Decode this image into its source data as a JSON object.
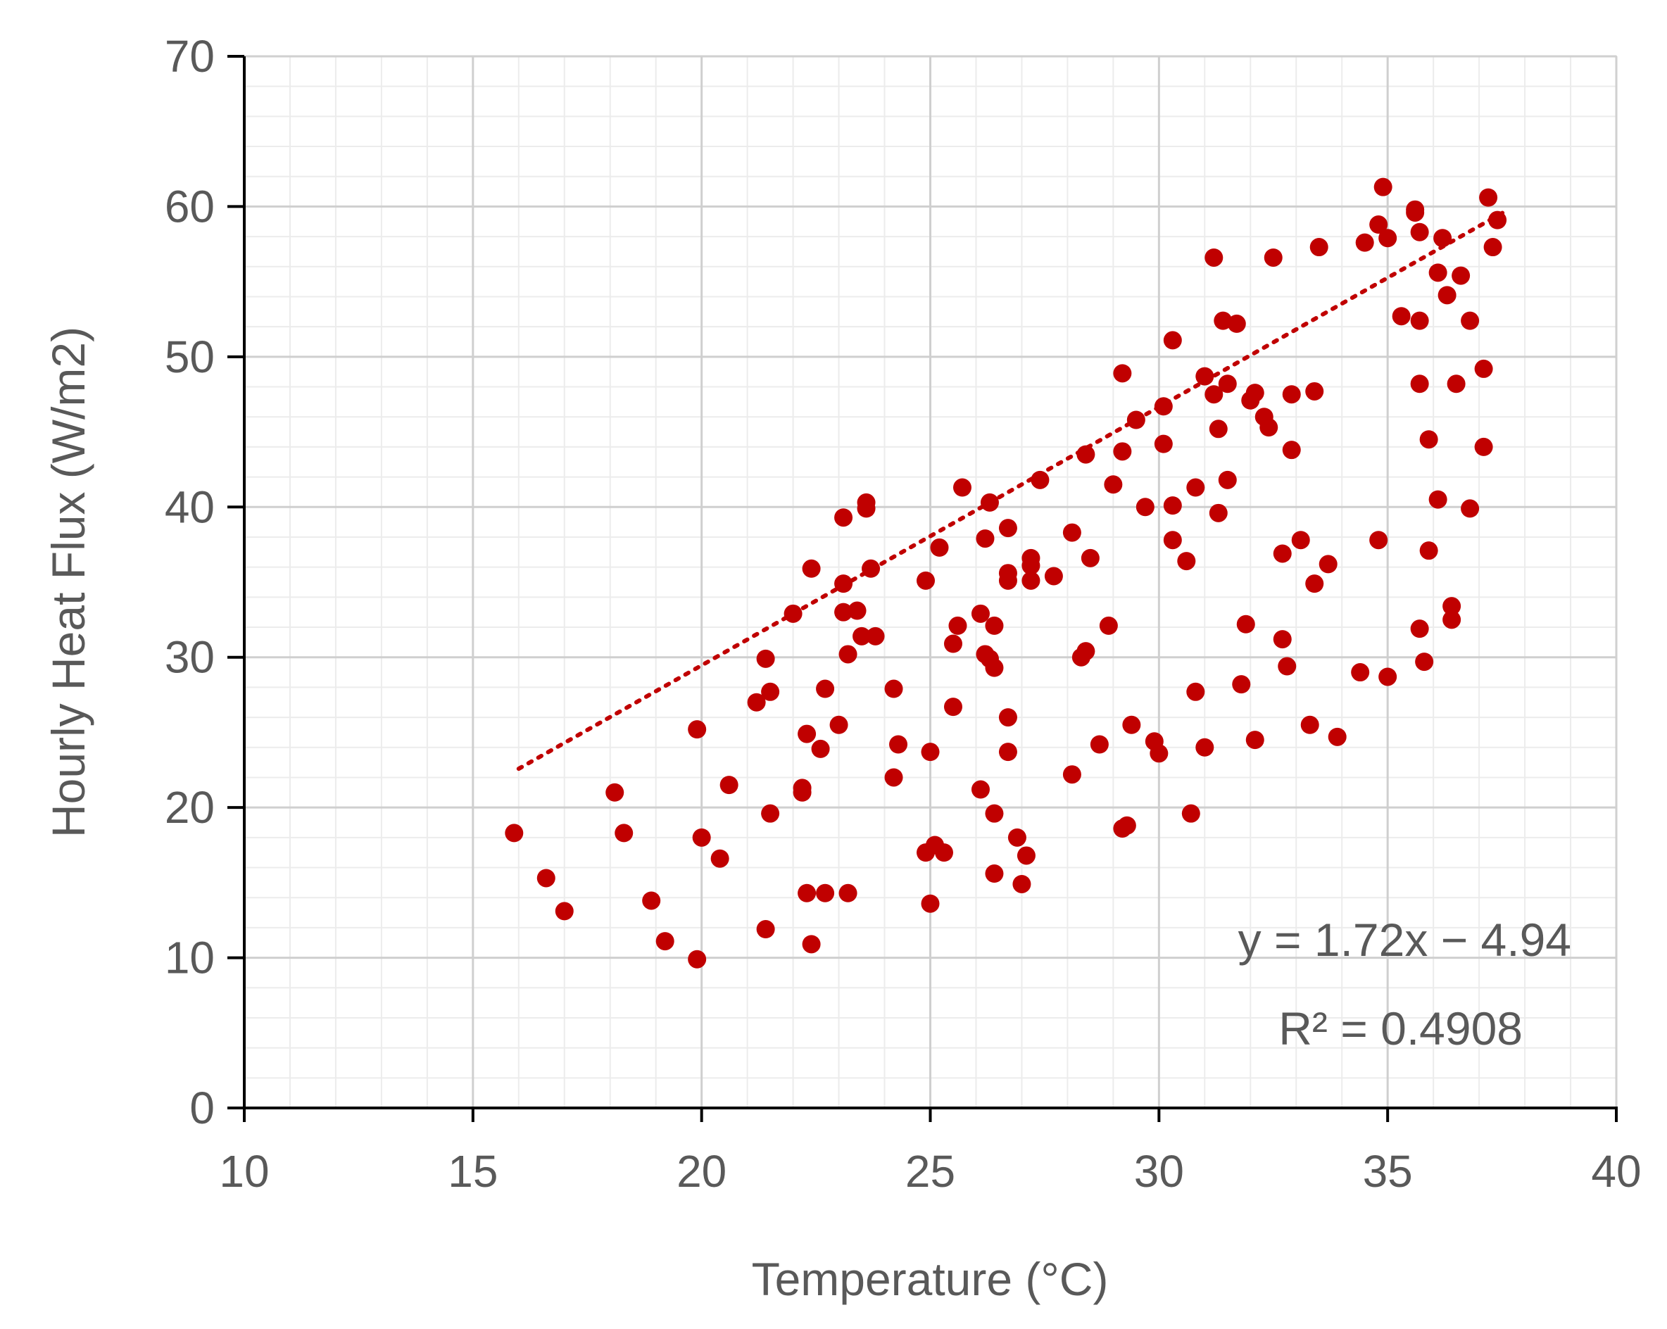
{
  "chart_data": {
    "type": "scatter",
    "xlabel": "Temperature (°C)",
    "ylabel": "Hourly Heat Flux (W/m2)",
    "xlim": [
      10,
      40
    ],
    "ylim": [
      0,
      70
    ],
    "x_ticks": [
      "10",
      "15",
      "20",
      "25",
      "30",
      "35",
      "40"
    ],
    "y_ticks": [
      "0",
      "10",
      "20",
      "30",
      "40",
      "50",
      "60",
      "70"
    ],
    "grid": true,
    "minor_grid": true,
    "marker_color": "#C00000",
    "trendline": {
      "type": "linear",
      "slope": 1.72,
      "intercept": -4.94,
      "x_range": [
        16.0,
        37.6
      ],
      "style": "dotted",
      "color": "#C00000"
    },
    "annotations": {
      "equation": "y = 1.72x − 4.94",
      "r_squared": "R² = 0.4908"
    },
    "series": [
      {
        "points": [
          [
            15.9,
            18.3
          ],
          [
            16.6,
            15.3
          ],
          [
            17.0,
            13.1
          ],
          [
            18.1,
            21.0
          ],
          [
            18.3,
            18.3
          ],
          [
            18.9,
            13.8
          ],
          [
            19.2,
            11.1
          ],
          [
            19.9,
            25.2
          ],
          [
            19.9,
            9.9
          ],
          [
            20.0,
            18.0
          ],
          [
            20.4,
            16.6
          ],
          [
            20.6,
            21.5
          ],
          [
            21.2,
            27.0
          ],
          [
            21.4,
            29.9
          ],
          [
            21.4,
            11.9
          ],
          [
            21.5,
            27.7
          ],
          [
            21.5,
            19.6
          ],
          [
            22.0,
            32.9
          ],
          [
            22.2,
            21.0
          ],
          [
            22.2,
            21.3
          ],
          [
            22.3,
            24.9
          ],
          [
            22.3,
            14.3
          ],
          [
            22.4,
            35.9
          ],
          [
            22.4,
            10.9
          ],
          [
            22.6,
            23.9
          ],
          [
            22.7,
            27.9
          ],
          [
            22.7,
            14.3
          ],
          [
            23.0,
            25.5
          ],
          [
            23.1,
            39.3
          ],
          [
            23.1,
            34.9
          ],
          [
            23.1,
            33.0
          ],
          [
            23.2,
            30.2
          ],
          [
            23.2,
            14.3
          ],
          [
            23.4,
            33.1
          ],
          [
            23.5,
            31.4
          ],
          [
            23.6,
            39.9
          ],
          [
            23.6,
            40.3
          ],
          [
            23.7,
            35.9
          ],
          [
            23.8,
            31.4
          ],
          [
            24.2,
            27.9
          ],
          [
            24.2,
            22.0
          ],
          [
            24.3,
            24.2
          ],
          [
            24.9,
            35.1
          ],
          [
            24.9,
            17.0
          ],
          [
            25.0,
            23.7
          ],
          [
            25.0,
            13.6
          ],
          [
            25.1,
            17.5
          ],
          [
            25.2,
            37.3
          ],
          [
            25.3,
            17.0
          ],
          [
            25.5,
            30.9
          ],
          [
            25.5,
            26.7
          ],
          [
            25.6,
            32.1
          ],
          [
            25.7,
            41.3
          ],
          [
            26.1,
            21.2
          ],
          [
            26.1,
            32.9
          ],
          [
            26.2,
            37.9
          ],
          [
            26.2,
            30.2
          ],
          [
            26.3,
            40.3
          ],
          [
            26.3,
            29.9
          ],
          [
            26.4,
            29.3
          ],
          [
            26.4,
            32.1
          ],
          [
            26.4,
            19.6
          ],
          [
            26.4,
            15.6
          ],
          [
            26.7,
            35.6
          ],
          [
            26.7,
            38.6
          ],
          [
            26.7,
            35.1
          ],
          [
            26.7,
            26.0
          ],
          [
            26.7,
            23.7
          ],
          [
            26.9,
            18.0
          ],
          [
            27.0,
            14.9
          ],
          [
            27.1,
            16.8
          ],
          [
            27.2,
            36.6
          ],
          [
            27.2,
            36.1
          ],
          [
            27.2,
            35.1
          ],
          [
            27.4,
            41.8
          ],
          [
            27.7,
            35.4
          ],
          [
            28.1,
            38.3
          ],
          [
            28.1,
            22.2
          ],
          [
            28.3,
            30.0
          ],
          [
            28.4,
            30.4
          ],
          [
            28.4,
            43.5
          ],
          [
            28.5,
            36.6
          ],
          [
            28.7,
            24.2
          ],
          [
            28.9,
            32.1
          ],
          [
            29.0,
            41.5
          ],
          [
            29.2,
            48.9
          ],
          [
            29.2,
            43.7
          ],
          [
            29.2,
            18.6
          ],
          [
            29.3,
            18.8
          ],
          [
            29.4,
            25.5
          ],
          [
            29.5,
            45.8
          ],
          [
            29.7,
            40.0
          ],
          [
            29.9,
            24.4
          ],
          [
            30.0,
            23.6
          ],
          [
            30.1,
            46.7
          ],
          [
            30.1,
            44.2
          ],
          [
            30.3,
            51.1
          ],
          [
            30.3,
            40.1
          ],
          [
            30.3,
            37.8
          ],
          [
            30.6,
            36.4
          ],
          [
            30.7,
            19.6
          ],
          [
            30.8,
            41.3
          ],
          [
            30.8,
            27.7
          ],
          [
            31.0,
            48.7
          ],
          [
            31.0,
            24.0
          ],
          [
            31.2,
            56.6
          ],
          [
            31.2,
            47.5
          ],
          [
            31.3,
            45.2
          ],
          [
            31.3,
            39.6
          ],
          [
            31.4,
            52.4
          ],
          [
            31.5,
            48.2
          ],
          [
            31.5,
            41.8
          ],
          [
            31.7,
            52.2
          ],
          [
            31.8,
            28.2
          ],
          [
            31.9,
            32.2
          ],
          [
            32.0,
            47.1
          ],
          [
            32.1,
            47.6
          ],
          [
            32.1,
            24.5
          ],
          [
            32.3,
            46.0
          ],
          [
            32.4,
            45.3
          ],
          [
            32.5,
            56.6
          ],
          [
            32.7,
            36.9
          ],
          [
            32.7,
            31.2
          ],
          [
            32.8,
            29.4
          ],
          [
            32.9,
            47.5
          ],
          [
            32.9,
            43.8
          ],
          [
            33.1,
            37.8
          ],
          [
            33.3,
            25.5
          ],
          [
            33.4,
            47.7
          ],
          [
            33.4,
            34.9
          ],
          [
            33.5,
            57.3
          ],
          [
            33.7,
            36.2
          ],
          [
            33.9,
            24.7
          ],
          [
            34.4,
            29.0
          ],
          [
            34.5,
            57.6
          ],
          [
            34.8,
            58.8
          ],
          [
            34.8,
            37.8
          ],
          [
            34.9,
            61.3
          ],
          [
            35.0,
            57.9
          ],
          [
            35.0,
            28.7
          ],
          [
            35.3,
            52.7
          ],
          [
            35.6,
            59.6
          ],
          [
            35.6,
            59.8
          ],
          [
            35.7,
            58.3
          ],
          [
            35.7,
            52.4
          ],
          [
            35.7,
            48.2
          ],
          [
            35.7,
            31.9
          ],
          [
            35.8,
            29.7
          ],
          [
            35.9,
            44.5
          ],
          [
            35.9,
            37.1
          ],
          [
            36.1,
            55.6
          ],
          [
            36.1,
            40.5
          ],
          [
            36.2,
            57.9
          ],
          [
            36.3,
            54.1
          ],
          [
            36.4,
            33.4
          ],
          [
            36.4,
            32.5
          ],
          [
            36.5,
            48.2
          ],
          [
            36.6,
            55.4
          ],
          [
            36.8,
            52.4
          ],
          [
            36.8,
            39.9
          ],
          [
            37.1,
            49.2
          ],
          [
            37.1,
            44.0
          ],
          [
            37.2,
            60.6
          ],
          [
            37.3,
            57.3
          ],
          [
            37.4,
            59.1
          ]
        ]
      }
    ]
  }
}
